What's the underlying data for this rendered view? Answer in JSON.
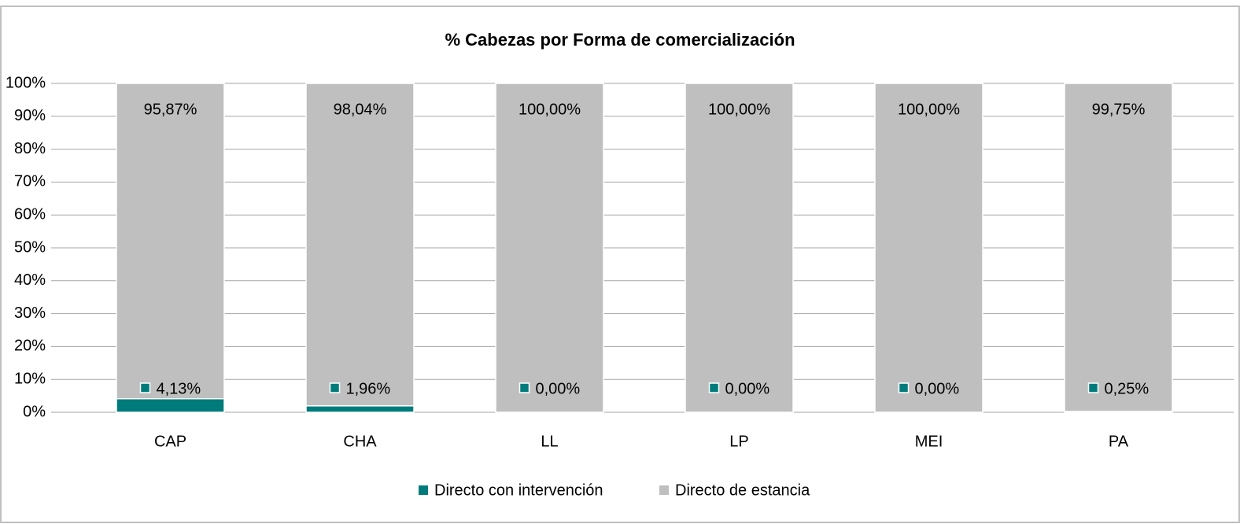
{
  "chart_data": {
    "type": "stacked_bar",
    "title": "% Cabezas por Forma de comercialización",
    "categories": [
      "CAP",
      "CHA",
      "LL",
      "LP",
      "MEI",
      "PA"
    ],
    "series": [
      {
        "name": "Directo con intervención",
        "color": "#007b7b",
        "values": [
          4.13,
          1.96,
          0,
          0,
          0,
          0.25
        ],
        "value_labels": [
          "4,13%",
          "1,96%",
          "0,00%",
          "0,00%",
          "0,00%",
          "0,25%"
        ]
      },
      {
        "name": "Directo de estancia",
        "color": "#bfbfbf",
        "values": [
          95.87,
          98.04,
          100,
          100,
          100,
          99.75
        ],
        "value_labels": [
          "95,87%",
          "98,04%",
          "100,00%",
          "100,00%",
          "100,00%",
          "99,75%"
        ]
      }
    ],
    "ylim": [
      0,
      100
    ],
    "yticks": [
      {
        "value": 0,
        "label": "0%"
      },
      {
        "value": 10,
        "label": "10%"
      },
      {
        "value": 20,
        "label": "20%"
      },
      {
        "value": 30,
        "label": "30%"
      },
      {
        "value": 40,
        "label": "40%"
      },
      {
        "value": 50,
        "label": "50%"
      },
      {
        "value": 60,
        "label": "60%"
      },
      {
        "value": 70,
        "label": "70%"
      },
      {
        "value": 80,
        "label": "80%"
      },
      {
        "value": 90,
        "label": "90%"
      },
      {
        "value": 100,
        "label": "100%"
      }
    ],
    "grid": true,
    "legend": "bottom"
  }
}
